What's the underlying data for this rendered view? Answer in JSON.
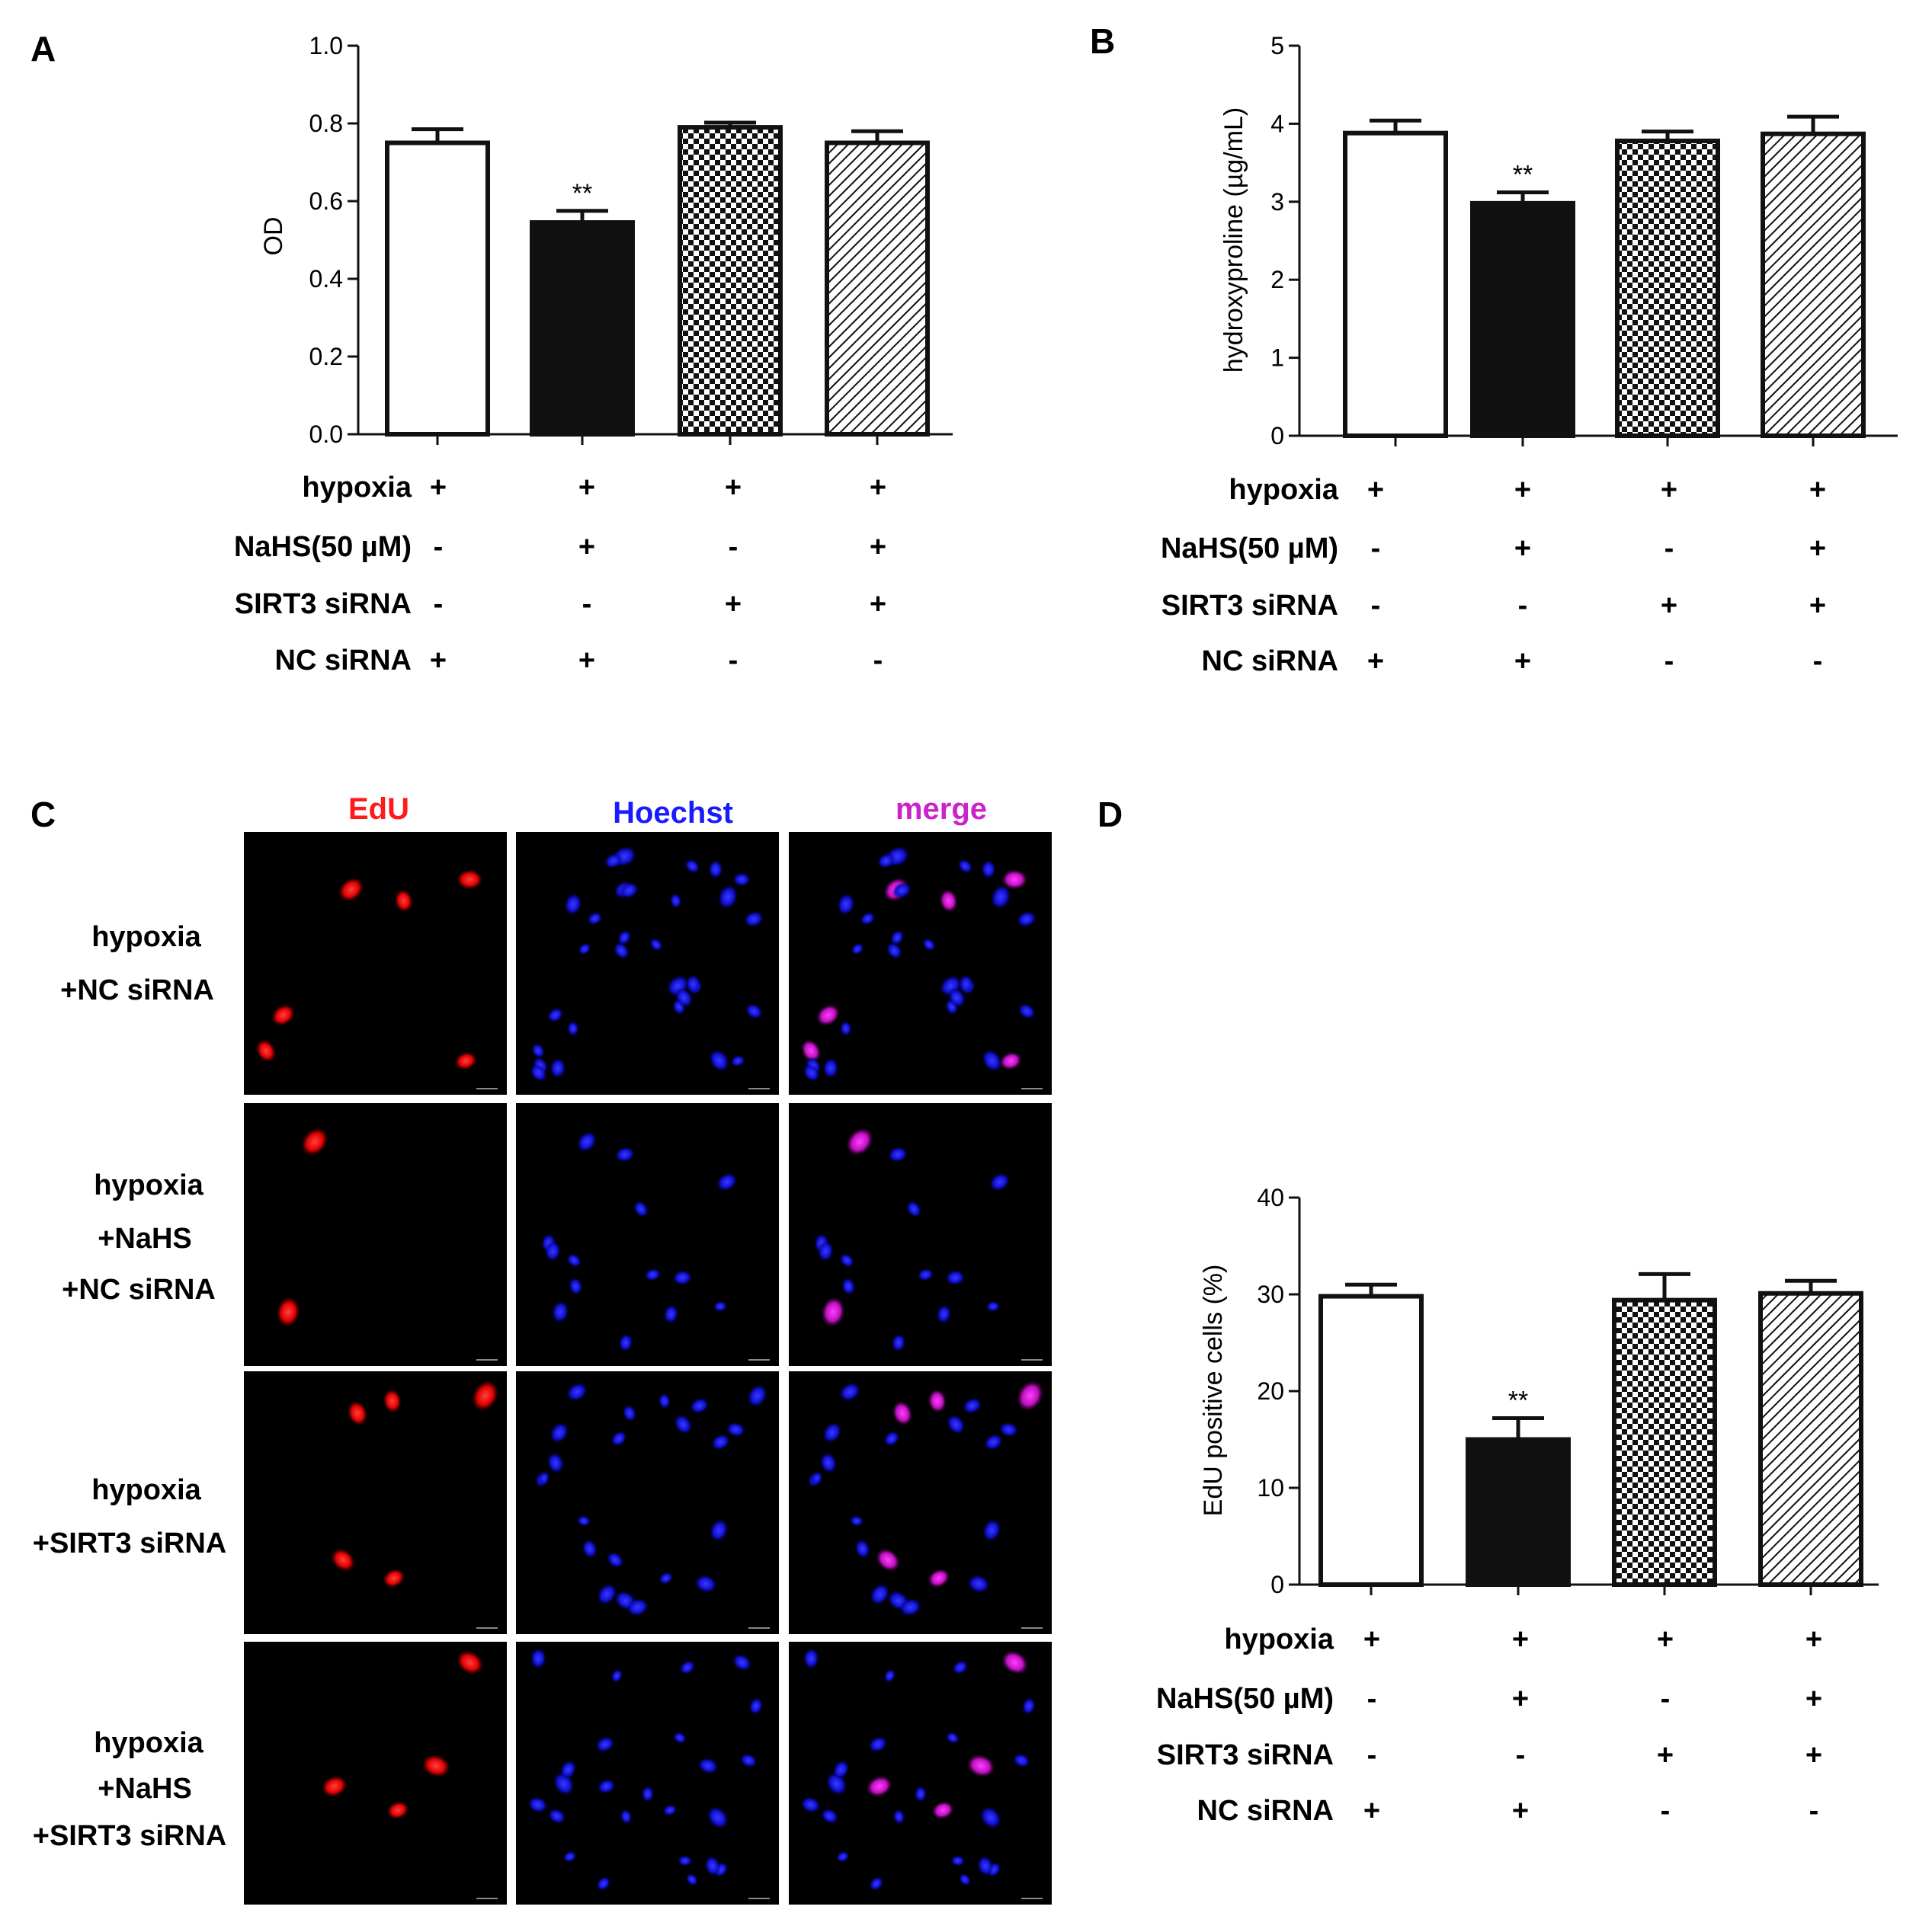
{
  "figure": {
    "panel_labels": [
      "A",
      "B",
      "C",
      "D"
    ],
    "condition_rows": [
      "hypoxia",
      "NaHS(50 µM)",
      "SIRT3 siRNA",
      "NC siRNA"
    ],
    "conditions": [
      [
        "+",
        "+",
        "+",
        "+"
      ],
      [
        "-",
        "+",
        "-",
        "+"
      ],
      [
        "-",
        "-",
        "+",
        "+"
      ],
      [
        "+",
        "+",
        "-",
        "-"
      ]
    ],
    "bar_fills": [
      "open",
      "solid",
      "checker",
      "hatch"
    ],
    "colors": {
      "ink": "#111111",
      "edu": "#ff1a1a",
      "hoechst": "#1a1aff",
      "merge": "#cc22cc"
    }
  },
  "chart_data": [
    {
      "panel": "A",
      "type": "bar",
      "title": "",
      "xlabel": "",
      "ylabel": "OD",
      "ylim": [
        0,
        1.0
      ],
      "yticks": [
        "0.0",
        "0.2",
        "0.4",
        "0.6",
        "0.8",
        "1.0"
      ],
      "ytick_values": [
        0,
        0.2,
        0.4,
        0.6,
        0.8,
        1.0
      ],
      "categories": [
        "1",
        "2",
        "3",
        "4"
      ],
      "values": [
        0.75,
        0.545,
        0.79,
        0.75
      ],
      "errors": [
        0.035,
        0.03,
        0.012,
        0.03
      ],
      "annotations": [
        "",
        "**",
        "",
        ""
      ]
    },
    {
      "panel": "B",
      "type": "bar",
      "title": "",
      "xlabel": "",
      "ylabel": "hydroxyproline (µg/mL)",
      "ylim": [
        0,
        5
      ],
      "yticks": [
        "0",
        "1",
        "2",
        "3",
        "4",
        "5"
      ],
      "ytick_values": [
        0,
        1,
        2,
        3,
        4,
        5
      ],
      "categories": [
        "1",
        "2",
        "3",
        "4"
      ],
      "values": [
        3.88,
        2.98,
        3.78,
        3.87
      ],
      "errors": [
        0.16,
        0.14,
        0.12,
        0.22
      ],
      "annotations": [
        "",
        "**",
        "",
        ""
      ]
    },
    {
      "panel": "D",
      "type": "bar",
      "title": "",
      "xlabel": "",
      "ylabel": "EdU positive cells (%)",
      "ylim": [
        0,
        40
      ],
      "yticks": [
        "0",
        "10",
        "20",
        "30",
        "40"
      ],
      "ytick_values": [
        0,
        10,
        20,
        30,
        40
      ],
      "categories": [
        "1",
        "2",
        "3",
        "4"
      ],
      "values": [
        29.8,
        15.0,
        29.4,
        30.1
      ],
      "errors": [
        1.2,
        2.2,
        2.7,
        1.3
      ],
      "annotations": [
        "",
        "**",
        "",
        ""
      ]
    }
  ],
  "microscopy": {
    "channels": [
      "EdU",
      "Hoechst",
      "merge"
    ],
    "groups": [
      [
        "hypoxia",
        "+NC siRNA"
      ],
      [
        "hypoxia",
        "+NaHS",
        "+NC siRNA"
      ],
      [
        "hypoxia",
        "+SIRT3 siRNA"
      ],
      [
        "hypoxia",
        "+NaHS",
        "+SIRT3 siRNA"
      ]
    ],
    "edu_nuclei_counts": [
      6,
      2,
      5,
      4
    ],
    "hoechst_nuclei_counts": [
      30,
      14,
      22,
      24
    ]
  }
}
